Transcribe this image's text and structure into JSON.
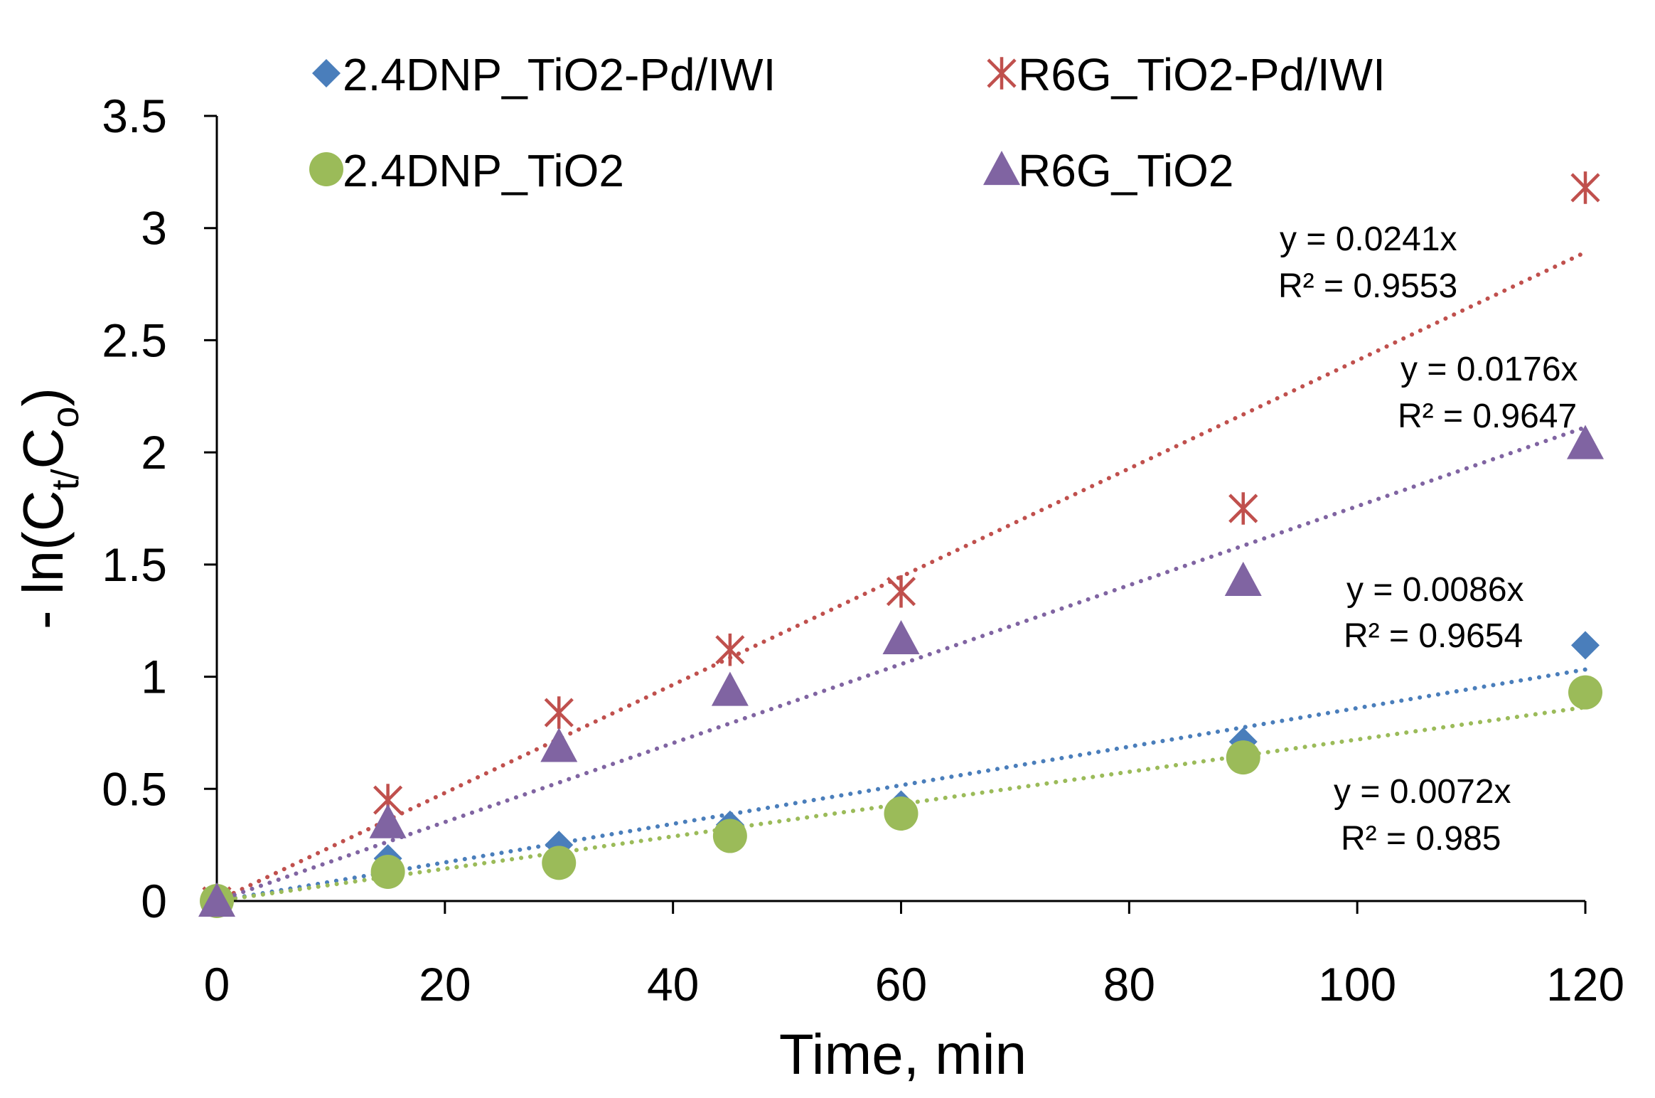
{
  "chart_data": {
    "type": "scatter",
    "xlabel": "Time, min",
    "ylabel": {
      "prefix": "- ln(C",
      "sub1": "t/",
      "middle": "C",
      "sub2": "o",
      "suffix": ")"
    },
    "xlim": [
      0,
      120
    ],
    "ylim": [
      0,
      3.5
    ],
    "x_ticks": [
      "0",
      "20",
      "40",
      "60",
      "80",
      "100",
      "120"
    ],
    "y_ticks": [
      "0",
      "0.5",
      "1",
      "1.5",
      "2",
      "2.5",
      "3",
      "3.5"
    ],
    "grid": false,
    "legend_position": "top",
    "series": [
      {
        "name": "2.4DNP_TiO2-Pd/IWI",
        "marker": "diamond",
        "color": "#4a7ebb",
        "x": [
          0,
          15,
          30,
          45,
          60,
          90,
          120
        ],
        "y": [
          0.0,
          0.19,
          0.25,
          0.34,
          0.43,
          0.71,
          1.14
        ],
        "trend_slope": 0.0086,
        "equation": "y = 0.0086x",
        "r2": "R² = 0.9654"
      },
      {
        "name": "R6G_TiO2-Pd/IWI",
        "marker": "asterisk",
        "color": "#c0504d",
        "x": [
          0,
          15,
          30,
          45,
          60,
          90,
          120
        ],
        "y": [
          0.0,
          0.45,
          0.84,
          1.12,
          1.38,
          1.75,
          3.18
        ],
        "trend_slope": 0.0241,
        "equation": "y = 0.0241x",
        "r2": "R² = 0.9553"
      },
      {
        "name": "2.4DNP_TiO2",
        "marker": "circle",
        "color": "#9bbb59",
        "x": [
          0,
          15,
          30,
          45,
          60,
          90,
          120
        ],
        "y": [
          0.0,
          0.13,
          0.17,
          0.29,
          0.39,
          0.64,
          0.93
        ],
        "trend_slope": 0.0072,
        "equation": "y = 0.0072x",
        "r2": "R² = 0.985"
      },
      {
        "name": "R6G_TiO2",
        "marker": "triangle",
        "color": "#8064a2",
        "x": [
          0,
          15,
          30,
          45,
          60,
          90,
          120
        ],
        "y": [
          0.0,
          0.35,
          0.69,
          0.94,
          1.17,
          1.43,
          2.04
        ],
        "trend_slope": 0.0176,
        "equation": "y = 0.0176x",
        "r2": "R² = 0.9647"
      }
    ]
  }
}
